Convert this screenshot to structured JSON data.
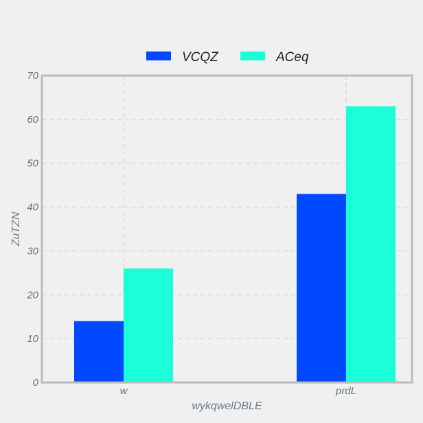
{
  "chart_data": {
    "type": "bar",
    "title": "",
    "xlabel": "wykqwelDBLE",
    "ylabel": "ZuTZN",
    "categories": [
      "w",
      "prdL"
    ],
    "series": [
      {
        "name": "VCQZ",
        "values": [
          14,
          43
        ],
        "color": "#0049ff"
      },
      {
        "name": "ACeq",
        "values": [
          26,
          63
        ],
        "color": "#1bffd9"
      }
    ],
    "ylim": [
      0,
      70
    ],
    "yticks": [
      0,
      10,
      20,
      30,
      40,
      50,
      60,
      70
    ],
    "grid": true,
    "legend_position": "top-center"
  },
  "colors": {
    "background": "#f0f0f0",
    "frame": "#bbbbbb",
    "grid": "#cbcbcb",
    "tick_text": "#5f7481",
    "axis_text": "#6b7f8c"
  }
}
